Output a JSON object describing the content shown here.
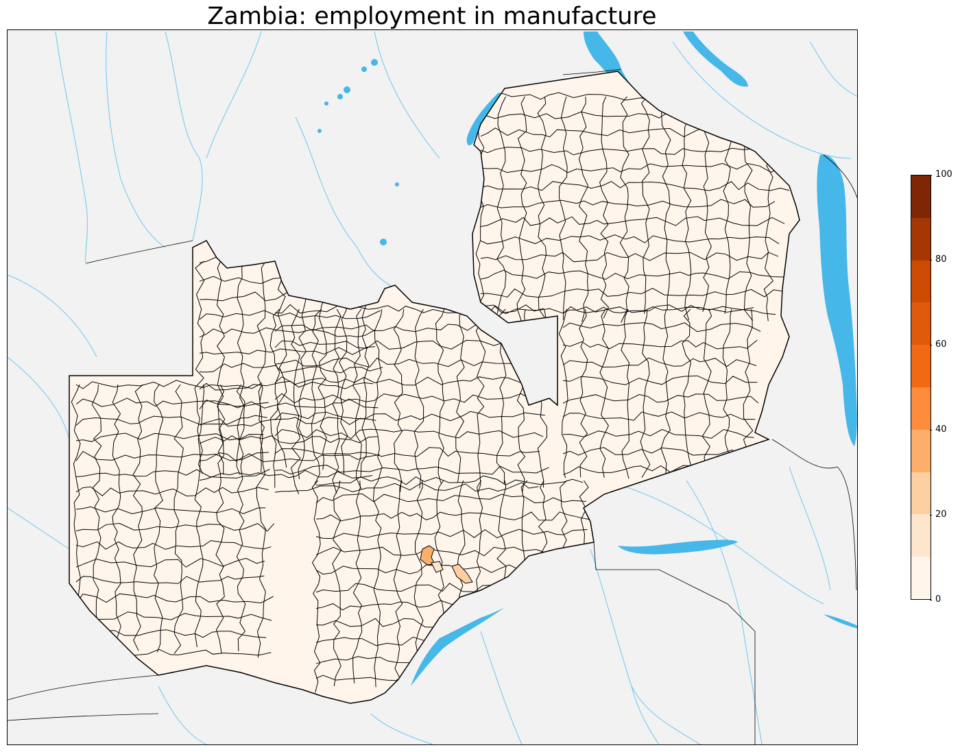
{
  "title": "Zambia: employment in manufacture",
  "legend": {
    "min": 0,
    "max": 100,
    "colors": [
      "#fff5eb",
      "#fee6ce",
      "#fdd0a2",
      "#fdae6b",
      "#fd8d3c",
      "#f16913",
      "#e05a0c",
      "#cc4a02",
      "#a63603",
      "#7f2704"
    ],
    "tick_labels": [
      "0",
      "20",
      "40",
      "60",
      "80",
      "100"
    ]
  },
  "map": {
    "background_color": "#f2f2f2",
    "water_color": "#45b7e8",
    "region_fill": "#fff5eb",
    "highlight_regions": [
      {
        "name": "",
        "value": 35
      },
      {
        "name": "",
        "value": 20
      },
      {
        "name": "",
        "value": 15
      }
    ]
  }
}
